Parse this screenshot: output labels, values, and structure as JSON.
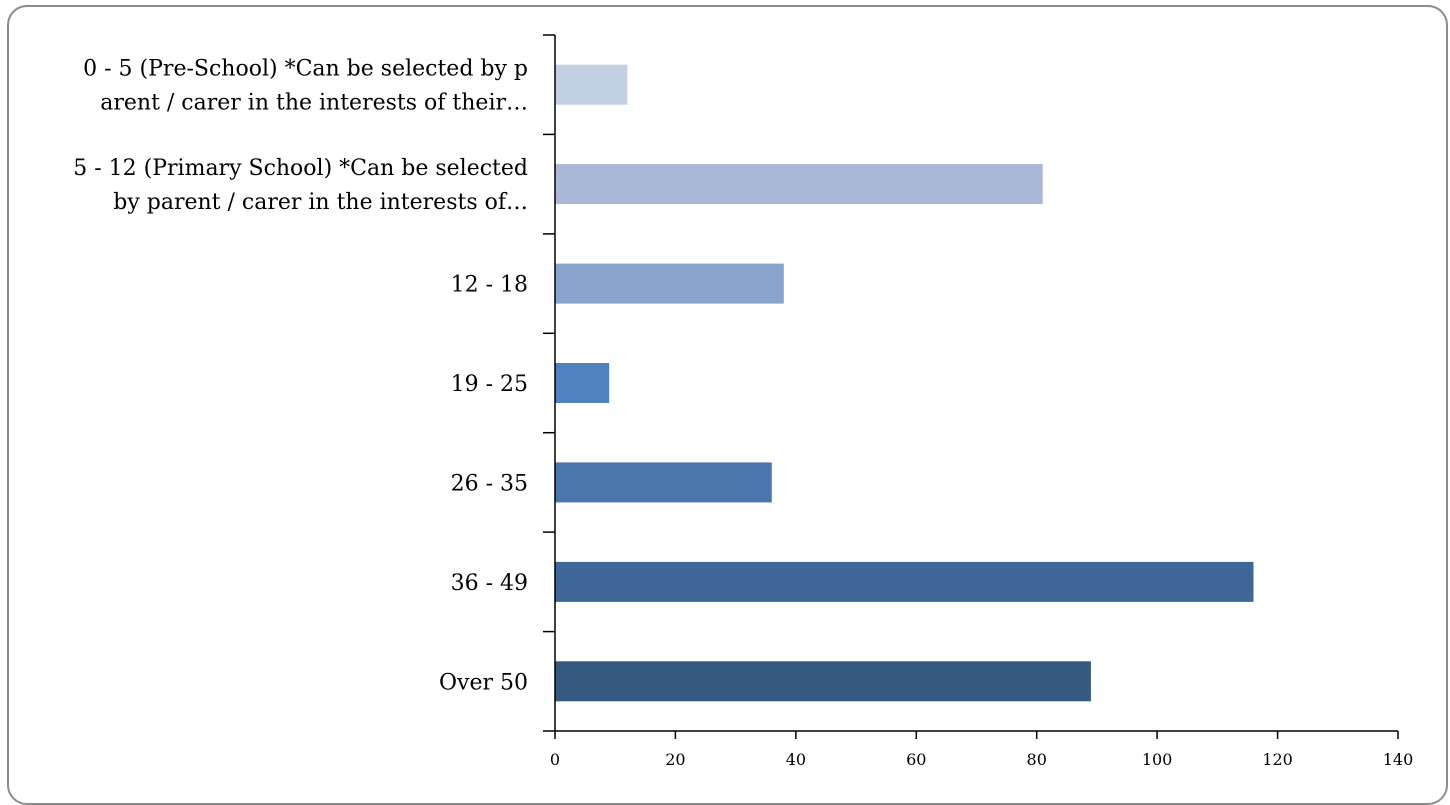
{
  "chart_data": {
    "type": "bar",
    "orientation": "horizontal",
    "title": "",
    "xlabel": "",
    "ylabel": "",
    "categories": [
      "0 - 5 (Pre-School) *Can be selected by parent / carer in the interests of their…",
      "5 - 12 (Primary School) *Can be selected by parent / carer in the interests of…",
      "12 - 18",
      "19 - 25",
      "26 - 35",
      "36 - 49",
      "Over 50"
    ],
    "category_label_lines": [
      [
        "0 - 5 (Pre-School) *Can be selected by p",
        "arent / carer  in the interests of their…"
      ],
      [
        "5 - 12 (Primary School) *Can be selected",
        "by parent / carer  in the interests of…"
      ],
      [
        "12 - 18"
      ],
      [
        "19 - 25"
      ],
      [
        "26 - 35"
      ],
      [
        "36 - 49"
      ],
      [
        "Over 50"
      ]
    ],
    "values": [
      12,
      81,
      38,
      9,
      36,
      116,
      89
    ],
    "bar_colors": [
      "#c3cfe2",
      "#aab9d8",
      "#88a3cc",
      "#4f81bd",
      "#4a76ad",
      "#3f6799",
      "#35597f"
    ],
    "xlim": [
      0,
      140
    ],
    "xticks": [
      0,
      20,
      40,
      60,
      80,
      100,
      120,
      140
    ],
    "grid": false,
    "legend": "none"
  }
}
